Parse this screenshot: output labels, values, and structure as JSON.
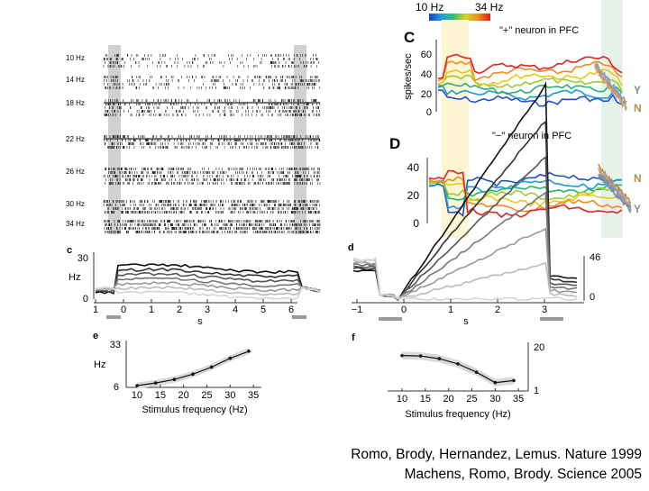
{
  "colors": {
    "bg": "#ffffff",
    "band_yellow": "#fdf5d3",
    "band_green": "#e6f1e8",
    "raster_band": "#d0d0d0",
    "gray_bar": "#9a9a9a"
  },
  "colorbar": {
    "low": "10 Hz",
    "high": "34 Hz"
  },
  "raster": {
    "rows": [
      {
        "label": "10 Hz",
        "density": 0.35
      },
      {
        "label": "14 Hz",
        "density": 0.45
      },
      {
        "label": "18 Hz",
        "density": 0.55
      },
      {
        "label": "22 Hz",
        "density": 0.65
      },
      {
        "label": "26 Hz",
        "density": 0.75
      },
      {
        "label": "30 Hz",
        "density": 0.85
      },
      {
        "label": "34 Hz",
        "density": 0.95
      }
    ]
  },
  "caption": {
    "line1": "Romo, Brody, Hernandez, Lemus. Nature 1999",
    "line2": "Machens, Romo, Brody. Science 2005"
  },
  "chart_data": [
    {
      "id": "C",
      "type": "line",
      "panel_label": "C",
      "title": "\"+\" neuron in PFC",
      "ylabel": "spikes/sec",
      "ylim": [
        0,
        70
      ],
      "yticks": [
        "0",
        "20",
        "40",
        "60"
      ],
      "legend": [
        "Y",
        "N"
      ],
      "series_count": 7,
      "shape": "rising with stimulus frequency during delay; top traces reach ~60 spikes/sec"
    },
    {
      "id": "D",
      "type": "line",
      "panel_label": "D",
      "title": "\"−\" neuron in PFC",
      "ylim": [
        0,
        50
      ],
      "yticks": [
        "0",
        "20",
        "40"
      ],
      "legend": [
        "N",
        "Y"
      ],
      "series_count": 7,
      "shape": "low frequencies highest during delay; values ~5–45 spikes/sec"
    },
    {
      "id": "c",
      "type": "line",
      "panel_label": "c",
      "ylabel": "Hz",
      "yticks": [
        "0",
        "30"
      ],
      "xticks": [
        "1",
        "0",
        "1",
        "2",
        "3",
        "4",
        "5",
        "6"
      ],
      "xlabel": "s",
      "series_count": 7
    },
    {
      "id": "d",
      "type": "line",
      "panel_label": "d",
      "yticks": [
        "0",
        "46"
      ],
      "xticks": [
        "−1",
        "0",
        "1",
        "2",
        "3"
      ],
      "xlabel": "s",
      "series_count": 7
    },
    {
      "id": "e",
      "type": "line",
      "panel_label": "e",
      "ylabel": "Hz",
      "yticks": [
        "6",
        "33"
      ],
      "xticks": [
        "10",
        "15",
        "20",
        "25",
        "30",
        "35"
      ],
      "xlabel": "Stimulus frequency (Hz)",
      "x": [
        10,
        14,
        18,
        22,
        26,
        30,
        34
      ],
      "y": [
        7,
        8.5,
        10.5,
        13.5,
        17.5,
        22.5,
        26.5
      ]
    },
    {
      "id": "f",
      "type": "line",
      "panel_label": "f",
      "yticks": [
        "20",
        "1"
      ],
      "xticks": [
        "10",
        "15",
        "20",
        "25",
        "30",
        "35"
      ],
      "xlabel": "Stimulus frequency (Hz)",
      "x": [
        10,
        14,
        18,
        22,
        26,
        30,
        34
      ],
      "y": [
        18,
        17.8,
        16.5,
        14,
        10,
        5,
        6
      ]
    }
  ]
}
